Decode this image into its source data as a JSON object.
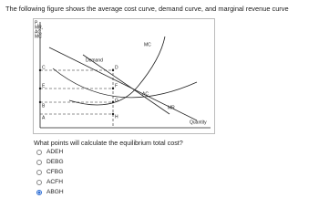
{
  "intro": "The following figure shows the average cost curve, demand curve, and marginal revenue curve",
  "figure": {
    "y_axis_label": [
      "P,",
      "MR,",
      "AC,",
      "MC"
    ],
    "x_axis_label": "Quantity",
    "curve_labels": [
      "MC",
      "Demand",
      "AC",
      "MR"
    ],
    "points": [
      "C",
      "D",
      "E",
      "F",
      "B",
      "G",
      "A",
      "H"
    ]
  },
  "question": "What points will calculate the equilibrium total cost?",
  "options": [
    "ADEH",
    "DEBG",
    "CFBG",
    "ACFH",
    "ABGH"
  ],
  "selected_option": 4
}
